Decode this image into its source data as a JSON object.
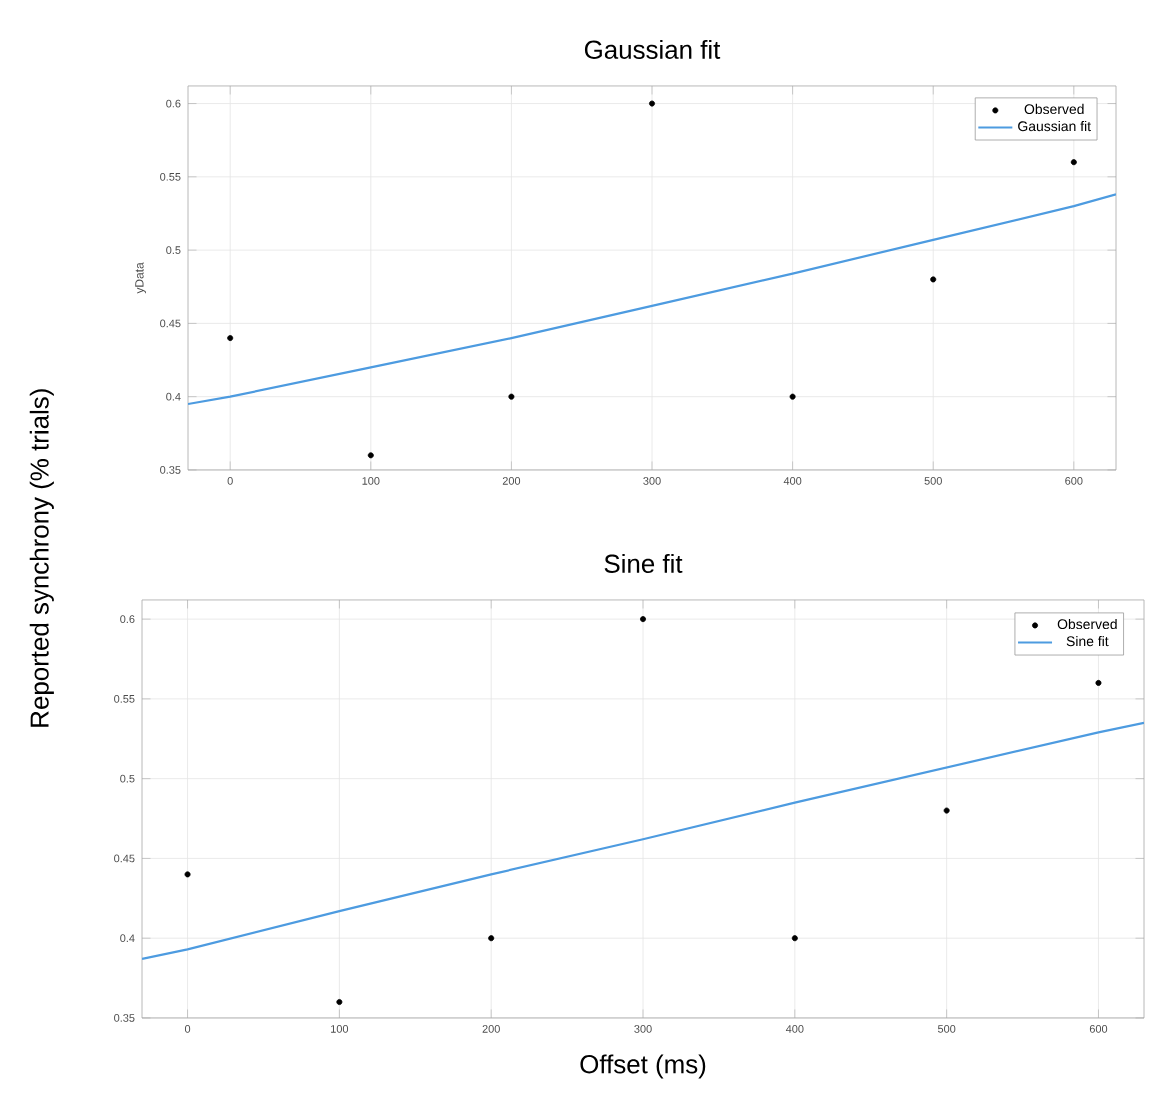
{
  "chart_data": [
    {
      "type": "scatter",
      "title": "Gaussian fit",
      "ylabel": "yData",
      "x": [
        0,
        100,
        200,
        300,
        400,
        500,
        600
      ],
      "xlim": [
        -30,
        630
      ],
      "ylim": [
        0.35,
        0.612
      ],
      "xticks": [
        0,
        100,
        200,
        300,
        400,
        500,
        600
      ],
      "yticks": [
        0.35,
        0.4,
        0.45,
        0.5,
        0.55,
        0.6
      ],
      "grid": true,
      "legend": "top right",
      "series": [
        {
          "name": "Observed",
          "marker": "circle",
          "color": "#000000",
          "values": [
            0.44,
            0.36,
            0.4,
            0.6,
            0.4,
            0.48,
            0.56
          ]
        },
        {
          "name": "Gaussian fit",
          "type": "line",
          "marker": "none",
          "color": "#4d9be0",
          "x": [
            -30,
            0,
            100,
            200,
            300,
            400,
            500,
            600,
            630
          ],
          "values": [
            0.395,
            0.4,
            0.42,
            0.44,
            0.462,
            0.484,
            0.507,
            0.53,
            0.538
          ]
        }
      ]
    },
    {
      "type": "scatter",
      "title": "Sine fit",
      "ylabel": "Reported synchrony (% trials)",
      "xlabel": "Offset (ms)",
      "x": [
        0,
        100,
        200,
        300,
        400,
        500,
        600
      ],
      "xlim": [
        -30,
        630
      ],
      "ylim": [
        0.35,
        0.612
      ],
      "xticks": [
        0,
        100,
        200,
        300,
        400,
        500,
        600
      ],
      "yticks": [
        0.35,
        0.4,
        0.45,
        0.5,
        0.55,
        0.6
      ],
      "grid": true,
      "legend": "top right",
      "series": [
        {
          "name": "Observed",
          "marker": "circle",
          "color": "#000000",
          "values": [
            0.44,
            0.36,
            0.4,
            0.6,
            0.4,
            0.48,
            0.56
          ]
        },
        {
          "name": "Sine fit",
          "type": "line",
          "marker": "none",
          "color": "#4d9be0",
          "x": [
            -30,
            0,
            100,
            200,
            300,
            400,
            500,
            600,
            630
          ],
          "values": [
            0.387,
            0.393,
            0.417,
            0.44,
            0.462,
            0.485,
            0.507,
            0.529,
            0.535
          ]
        }
      ]
    }
  ]
}
